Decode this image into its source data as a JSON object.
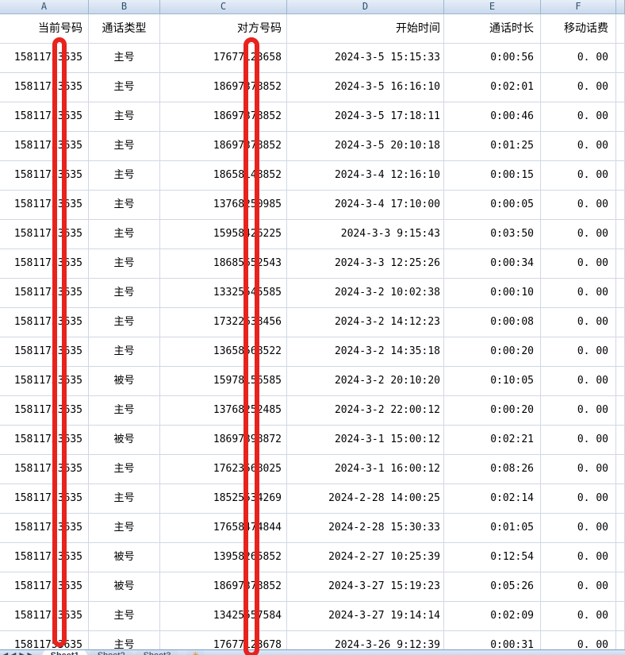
{
  "column_letters": [
    "A",
    "B",
    "C",
    "D",
    "E",
    "F"
  ],
  "header_row": {
    "current_number": "当前号码",
    "call_type": "通话类型",
    "other_number": "对方号码",
    "start_time": "开始时间",
    "duration": "通话时长",
    "fee": "移动话费"
  },
  "rows": [
    {
      "current_number": "15811753635",
      "call_type": "主号",
      "other_number": "17677123658",
      "start_time": "2024-3-5 15:15:33",
      "duration": "0:00:56",
      "fee": "0. 00"
    },
    {
      "current_number": "15811753635",
      "call_type": "主号",
      "other_number": "18697378852",
      "start_time": "2024-3-5 16:16:10",
      "duration": "0:02:01",
      "fee": "0. 00"
    },
    {
      "current_number": "15811753635",
      "call_type": "主号",
      "other_number": "18697378852",
      "start_time": "2024-3-5 17:18:11",
      "duration": "0:00:46",
      "fee": "0. 00"
    },
    {
      "current_number": "15811753635",
      "call_type": "主号",
      "other_number": "18697378852",
      "start_time": "2024-3-5 20:10:18",
      "duration": "0:01:25",
      "fee": "0. 00"
    },
    {
      "current_number": "15811753635",
      "call_type": "主号",
      "other_number": "18658148852",
      "start_time": "2024-3-4 12:16:10",
      "duration": "0:00:15",
      "fee": "0. 00"
    },
    {
      "current_number": "15811753635",
      "call_type": "主号",
      "other_number": "13768250985",
      "start_time": "2024-3-4 17:10:00",
      "duration": "0:00:05",
      "fee": "0. 00"
    },
    {
      "current_number": "15811753635",
      "call_type": "主号",
      "other_number": "15958426225",
      "start_time": "2024-3-3 9:15:43",
      "duration": "0:03:50",
      "fee": "0. 00"
    },
    {
      "current_number": "15811753635",
      "call_type": "主号",
      "other_number": "18685652543",
      "start_time": "2024-3-3 12:25:26",
      "duration": "0:00:34",
      "fee": "0. 00"
    },
    {
      "current_number": "15811753635",
      "call_type": "主号",
      "other_number": "13325545585",
      "start_time": "2024-3-2 10:02:38",
      "duration": "0:00:10",
      "fee": "0. 00"
    },
    {
      "current_number": "15811753635",
      "call_type": "主号",
      "other_number": "17322638456",
      "start_time": "2024-3-2 14:12:23",
      "duration": "0:00:08",
      "fee": "0. 00"
    },
    {
      "current_number": "15811753635",
      "call_type": "主号",
      "other_number": "13658568522",
      "start_time": "2024-3-2 14:35:18",
      "duration": "0:00:20",
      "fee": "0. 00"
    },
    {
      "current_number": "15811753635",
      "call_type": "被号",
      "other_number": "15978156585",
      "start_time": "2024-3-2 20:10:20",
      "duration": "0:10:05",
      "fee": "0. 00"
    },
    {
      "current_number": "15811753635",
      "call_type": "主号",
      "other_number": "13768252485",
      "start_time": "2024-3-2 22:00:12",
      "duration": "0:00:20",
      "fee": "0. 00"
    },
    {
      "current_number": "15811753635",
      "call_type": "被号",
      "other_number": "18697398872",
      "start_time": "2024-3-1 15:00:12",
      "duration": "0:02:21",
      "fee": "0. 00"
    },
    {
      "current_number": "15811753635",
      "call_type": "主号",
      "other_number": "17623568025",
      "start_time": "2024-3-1 16:00:12",
      "duration": "0:08:26",
      "fee": "0. 00"
    },
    {
      "current_number": "15811753635",
      "call_type": "主号",
      "other_number": "18525534269",
      "start_time": "2024-2-28 14:00:25",
      "duration": "0:02:14",
      "fee": "0. 00"
    },
    {
      "current_number": "15811753635",
      "call_type": "主号",
      "other_number": "17658474844",
      "start_time": "2024-2-28 15:30:33",
      "duration": "0:01:05",
      "fee": "0. 00"
    },
    {
      "current_number": "15811753635",
      "call_type": "被号",
      "other_number": "13958265852",
      "start_time": "2024-2-27 10:25:39",
      "duration": "0:12:54",
      "fee": "0. 00"
    },
    {
      "current_number": "15811753635",
      "call_type": "被号",
      "other_number": "18697378852",
      "start_time": "2024-3-27 15:19:23",
      "duration": "0:05:26",
      "fee": "0. 00"
    },
    {
      "current_number": "15811753635",
      "call_type": "主号",
      "other_number": "13425557584",
      "start_time": "2024-3-27 19:14:14",
      "duration": "0:02:09",
      "fee": "0. 00"
    },
    {
      "current_number": "15811753635",
      "call_type": "主号",
      "other_number": "17677123678",
      "start_time": "2024-3-26 9:12:39",
      "duration": "0:00:31",
      "fee": "0. 00"
    }
  ],
  "sheet_tabs": [
    {
      "label": "Sheet1",
      "active": true
    },
    {
      "label": "Sheet2",
      "active": false
    },
    {
      "label": "Sheet3",
      "active": false
    }
  ],
  "tab_nav": {
    "first": "◀",
    "prev": "◀",
    "next": "▶",
    "last": "▶"
  },
  "insert_tab_icon": "✳",
  "colors": {
    "redaction": "#e8231d",
    "grid_line": "#d0d7e5",
    "header_border": "#9eb6ce",
    "header_text": "#31506e"
  }
}
